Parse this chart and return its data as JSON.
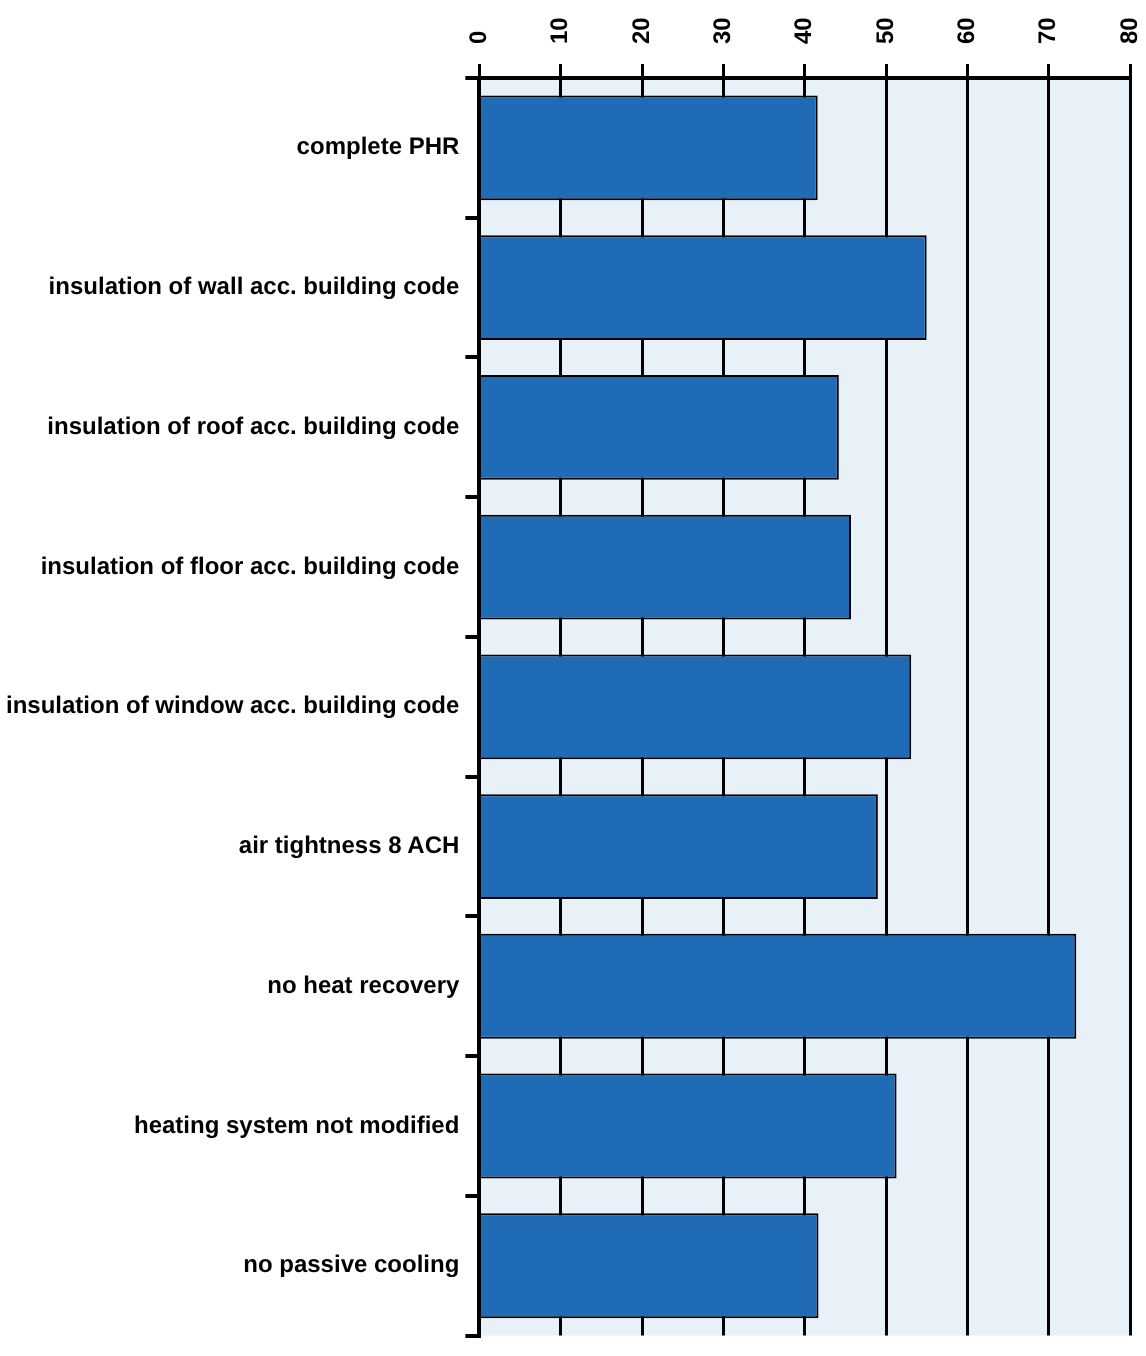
{
  "chart_data": {
    "type": "bar",
    "orientation": "horizontal",
    "categories": [
      "complete PHR",
      "insulation of wall acc. building code",
      "insulation of roof acc. building code",
      "insulation of floor acc. building code",
      "insulation of window acc. building code",
      "air tightness 8 ACH",
      "no heat recovery",
      "heating system not modified",
      "no passive cooling"
    ],
    "values": [
      41.6,
      55,
      44.2,
      45.7,
      53.1,
      49,
      73.4,
      51.3,
      41.7
    ],
    "color": "#1f6bb5",
    "xlim": [
      0,
      80
    ],
    "xticks": [
      0,
      10,
      20,
      30,
      40,
      50,
      60,
      70,
      80
    ],
    "grid": "x"
  }
}
